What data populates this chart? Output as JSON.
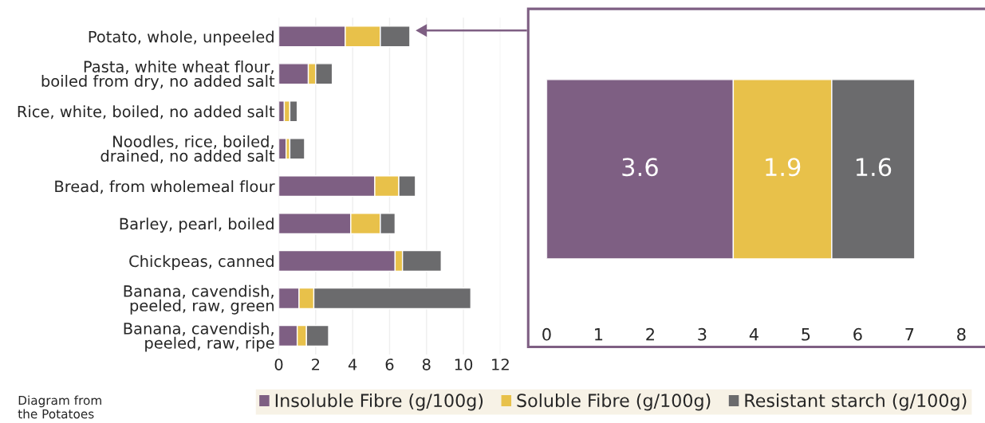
{
  "chart_data": [
    {
      "type": "bar",
      "orientation": "horizontal",
      "stacked": true,
      "categories": [
        "Potato, whole, unpeeled",
        "Pasta, white wheat flour,\nboiled from dry, no added salt",
        "Rice, white, boiled, no added salt",
        "Noodles, rice, boiled,\ndrained, no added salt",
        "Bread, from wholemeal flour",
        "Barley, pearl, boiled",
        "Chickpeas, canned",
        "Banana, cavendish,\npeeled, raw, green",
        "Banana, cavendish,\npeeled, raw, ripe"
      ],
      "series": [
        {
          "name": "Insoluble Fibre (g/100g)",
          "color": "#7e5f83",
          "values": [
            3.6,
            1.6,
            0.3,
            0.4,
            5.2,
            3.9,
            6.3,
            1.1,
            1.0
          ]
        },
        {
          "name": "Soluble Fibre (g/100g)",
          "color": "#e8c14a",
          "values": [
            1.9,
            0.4,
            0.3,
            0.2,
            1.3,
            1.6,
            0.4,
            0.8,
            0.5
          ]
        },
        {
          "name": "Resistant starch (g/100g)",
          "color": "#6b6b6d",
          "values": [
            1.6,
            0.9,
            0.4,
            0.8,
            0.9,
            0.8,
            2.1,
            8.5,
            1.2
          ]
        }
      ],
      "xlim": [
        0,
        12
      ],
      "xticks": [
        0,
        2,
        4,
        6,
        8,
        10,
        12
      ],
      "grid": "x",
      "legend": "bottom",
      "annotations": [
        "Diagram from\nthe Potatoes"
      ]
    },
    {
      "type": "bar",
      "orientation": "horizontal",
      "stacked": true,
      "categories": [
        null
      ],
      "series": [
        {
          "color": "#7e5f83",
          "values": [
            3.6
          ]
        },
        {
          "color": "#e8c14a",
          "values": [
            1.9
          ]
        },
        {
          "color": "#6b6b6d",
          "values": [
            1.6
          ]
        }
      ],
      "xlim": [
        0,
        8
      ],
      "xticks": [
        0,
        1,
        2,
        3,
        4,
        5,
        6,
        7,
        8
      ],
      "data_labels": true
    }
  ]
}
